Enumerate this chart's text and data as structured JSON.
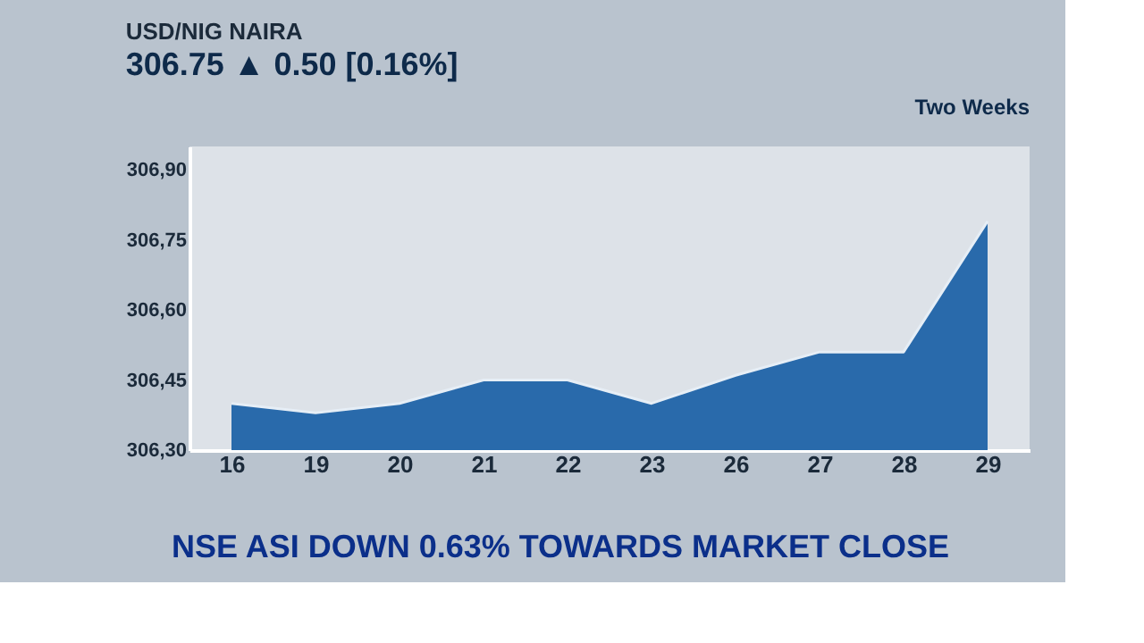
{
  "chart_data": {
    "type": "area",
    "title": "USD/NIG NAIRA",
    "subtitle": "306.75 ▲ 0.50 [0.16%]",
    "annotations": [
      "Two Weeks",
      "NSE ASI DOWN 0.63% TOWARDS MARKET CLOSE"
    ],
    "categories": [
      "16",
      "19",
      "20",
      "21",
      "22",
      "23",
      "26",
      "27",
      "28",
      "29"
    ],
    "series": [
      {
        "color": "#1f63a8",
        "values": [
          306.4,
          306.38,
          306.4,
          306.45,
          306.45,
          306.4,
          306.46,
          306.51,
          306.51,
          306.79
        ]
      }
    ],
    "ylim": [
      306.3,
      306.95
    ],
    "yticks": [
      {
        "value": 306.3,
        "label": "306,30"
      },
      {
        "value": 306.45,
        "label": "306,45"
      },
      {
        "value": 306.6,
        "label": "306,60"
      },
      {
        "value": 306.75,
        "label": "306,75"
      },
      {
        "value": 306.9,
        "label": "306,90"
      }
    ],
    "grid": false
  }
}
